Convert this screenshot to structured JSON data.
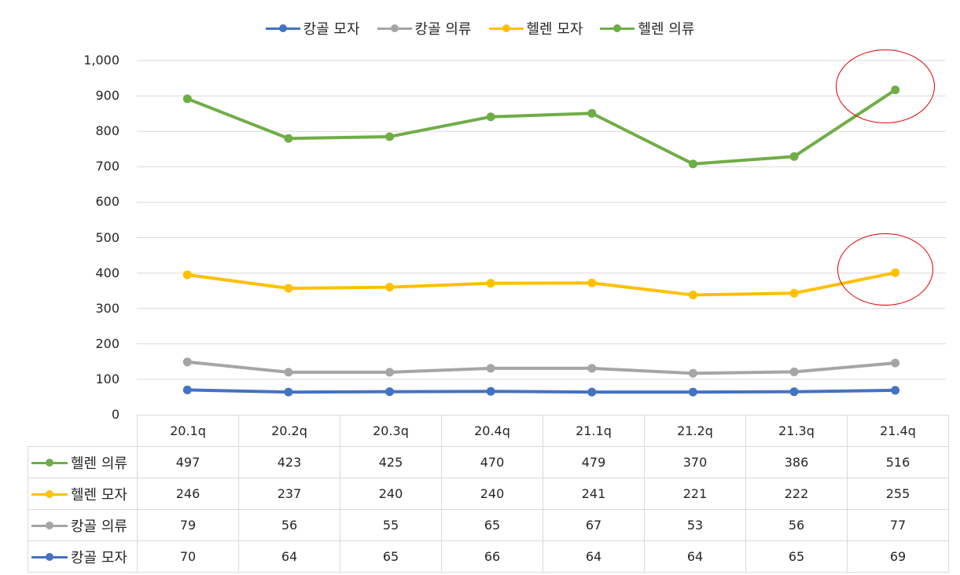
{
  "chart_data": {
    "type": "line",
    "categories": [
      "20.1q",
      "20.2q",
      "20.3q",
      "20.4q",
      "21.1q",
      "21.2q",
      "21.3q",
      "21.4q"
    ],
    "ylim": [
      0,
      1000
    ],
    "yticks": [
      "0",
      "100",
      "200",
      "300",
      "400",
      "500",
      "600",
      "700",
      "800",
      "900",
      "1,000"
    ],
    "grid": true,
    "legend_position": "top",
    "series": [
      {
        "name": "캉골 모자",
        "color": "#4472c4",
        "values": [
          70,
          64,
          65,
          66,
          64,
          64,
          65,
          69
        ]
      },
      {
        "name": "캉골 의류",
        "color": "#a5a5a5",
        "values": [
          149,
          120,
          120,
          131,
          131,
          117,
          121,
          146
        ]
      },
      {
        "name": "헬렌 모자",
        "color": "#ffc000",
        "values": [
          395,
          357,
          360,
          371,
          372,
          338,
          343,
          401
        ]
      },
      {
        "name": "헬렌 의류",
        "color": "#70ad47",
        "values": [
          892,
          780,
          785,
          841,
          851,
          708,
          729,
          917
        ]
      }
    ],
    "table": {
      "rows": [
        {
          "name": "헬렌 의류",
          "color": "#70ad47",
          "values": [
            "497",
            "423",
            "425",
            "470",
            "479",
            "370",
            "386",
            "516"
          ]
        },
        {
          "name": "헬렌 모자",
          "color": "#ffc000",
          "values": [
            "246",
            "237",
            "240",
            "240",
            "241",
            "221",
            "222",
            "255"
          ]
        },
        {
          "name": "캉골 의류",
          "color": "#a5a5a5",
          "values": [
            "79",
            "56",
            "55",
            "65",
            "67",
            "53",
            "56",
            "77"
          ]
        },
        {
          "name": "캉골 모자",
          "color": "#4472c4",
          "values": [
            "70",
            "64",
            "65",
            "66",
            "64",
            "64",
            "65",
            "69"
          ]
        }
      ]
    },
    "annotations": [
      {
        "type": "ellipse",
        "color": "#e00000",
        "highlight": "헬렌 의류 21.4q"
      },
      {
        "type": "ellipse",
        "color": "#e00000",
        "highlight": "헬렌 모자 21.4q"
      }
    ]
  }
}
